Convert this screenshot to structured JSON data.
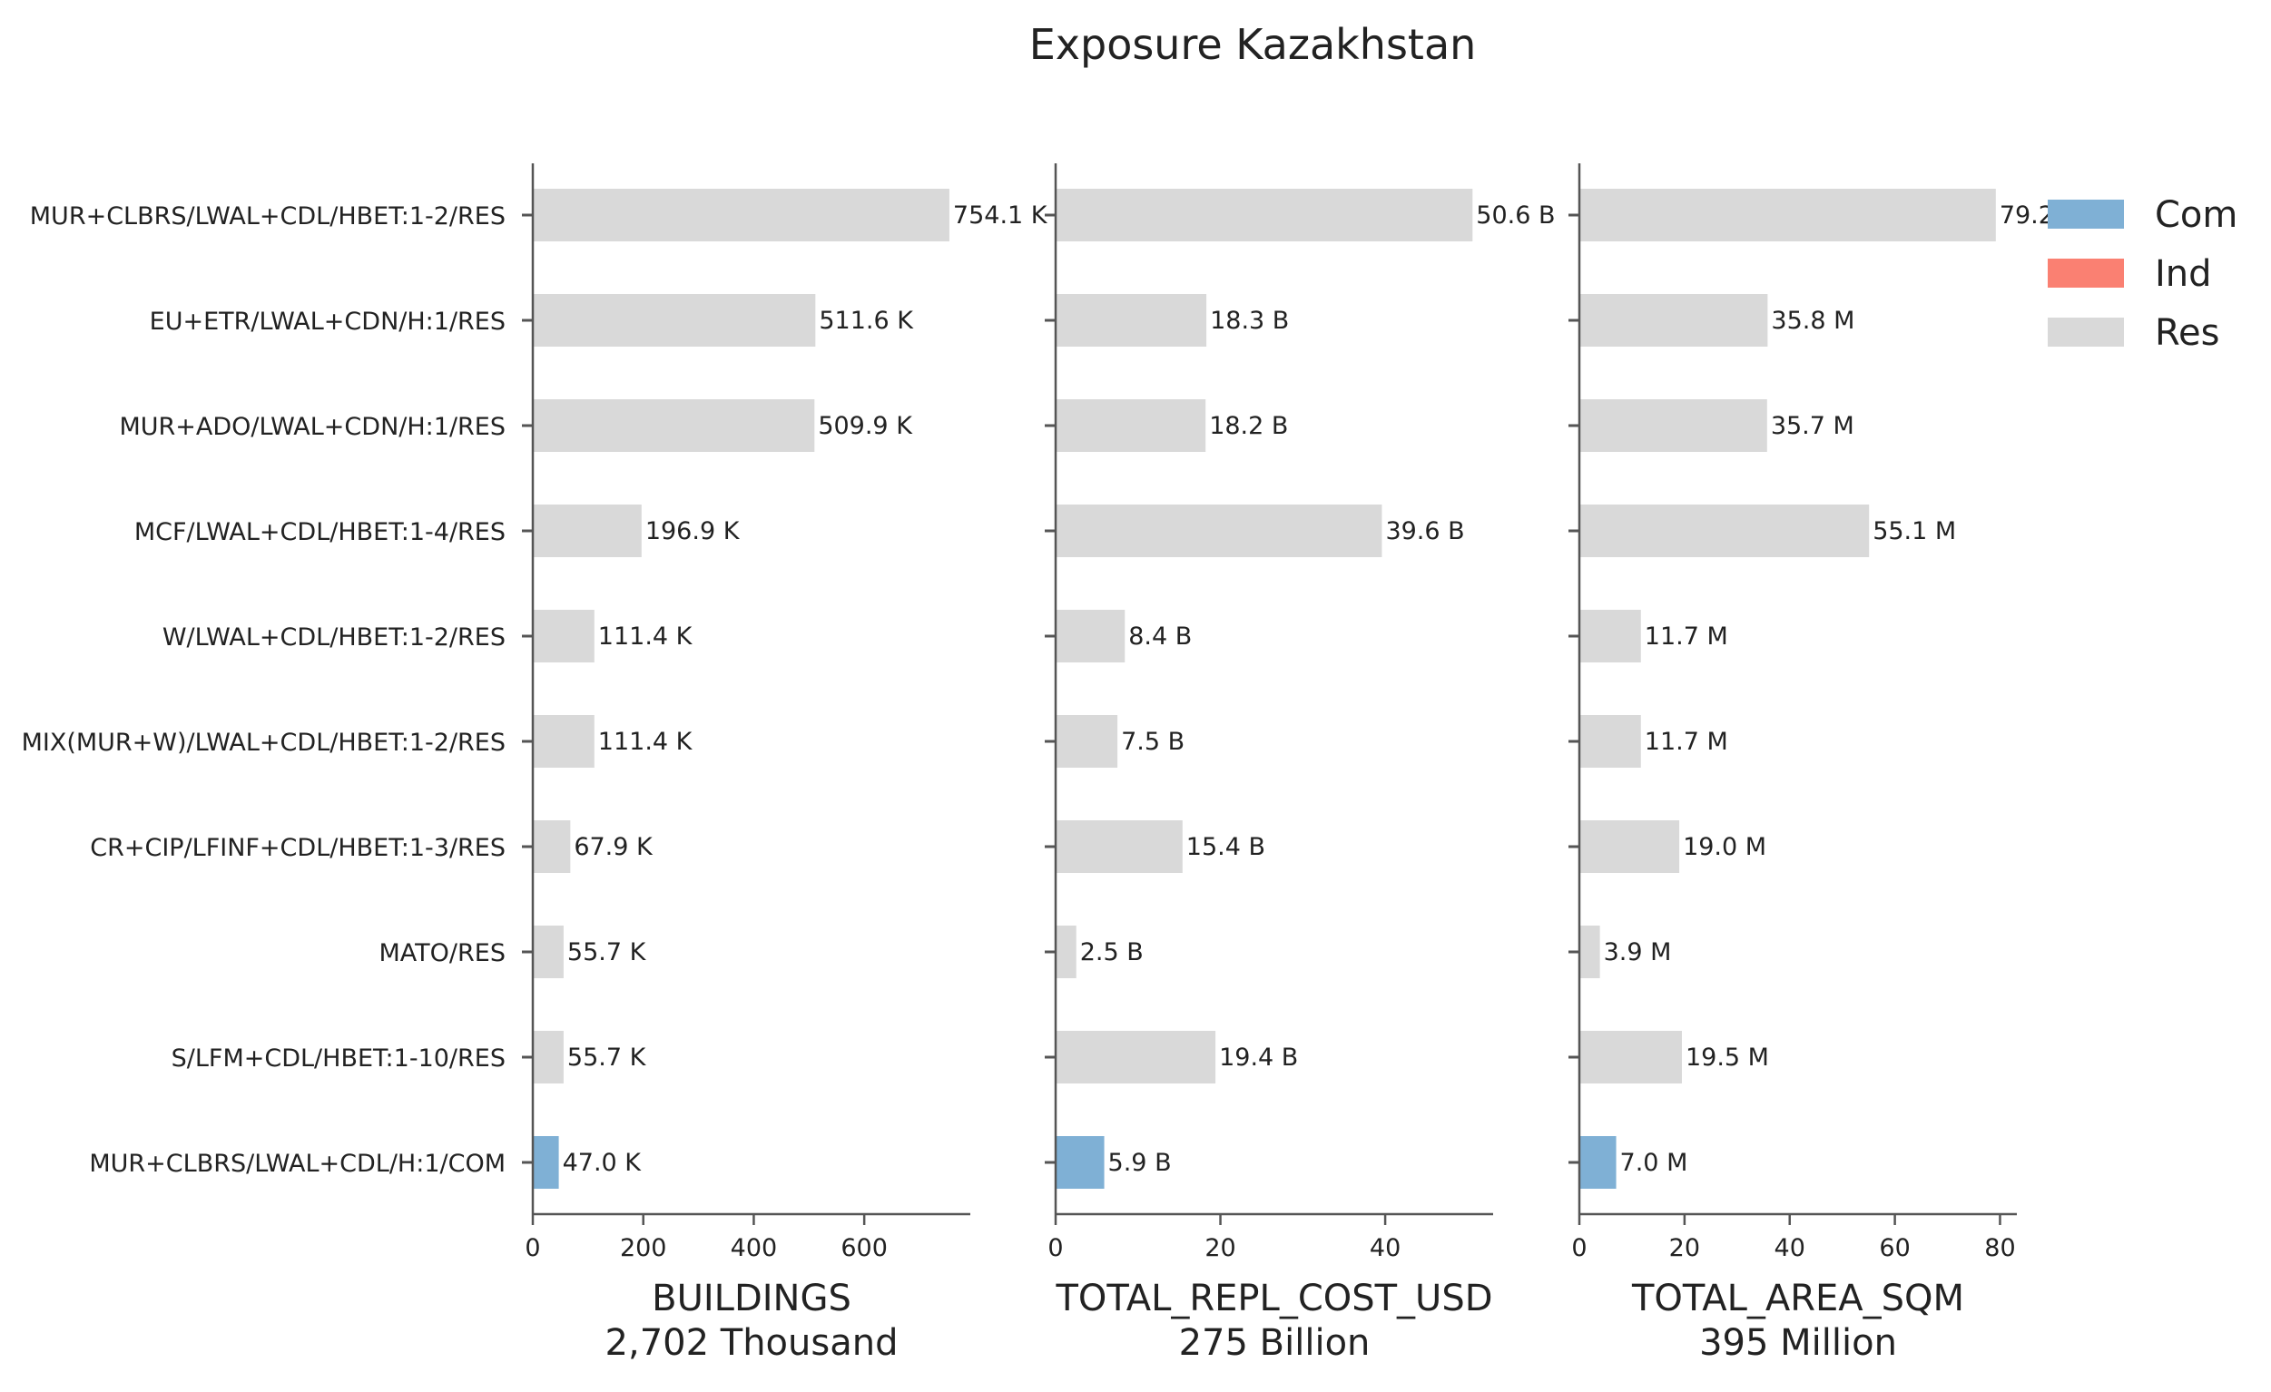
{
  "chart_data": {
    "type": "bar",
    "orientation": "horizontal",
    "title": "Exposure Kazakhstan",
    "categories": [
      "MUR+CLBRS/LWAL+CDL/HBET:1-2/RES",
      "EU+ETR/LWAL+CDN/H:1/RES",
      "MUR+ADO/LWAL+CDN/H:1/RES",
      "MCF/LWAL+CDL/HBET:1-4/RES",
      "W/LWAL+CDL/HBET:1-2/RES",
      "MIX(MUR+W)/LWAL+CDL/HBET:1-2/RES",
      "CR+CIP/LFINF+CDL/HBET:1-3/RES",
      "MATO/RES",
      "S/LFM+CDL/HBET:1-10/RES",
      "MUR+CLBRS/LWAL+CDL/H:1/COM"
    ],
    "occupancy": [
      "Res",
      "Res",
      "Res",
      "Res",
      "Res",
      "Res",
      "Res",
      "Res",
      "Res",
      "Com"
    ],
    "legend": {
      "placement": "top-right",
      "entries": [
        {
          "label": "Com",
          "color": "#7fb0d5"
        },
        {
          "label": "Ind",
          "color": "#fa8072"
        },
        {
          "label": "Res",
          "color": "#d9d9d9"
        }
      ]
    },
    "panels": [
      {
        "xlabel": "BUILDINGS",
        "total_label": "2,702 Thousand",
        "values": [
          754.1,
          511.6,
          509.9,
          196.9,
          111.4,
          111.4,
          67.9,
          55.7,
          55.7,
          47.0
        ],
        "value_labels": [
          "754.1 K",
          "511.6 K",
          "509.9 K",
          "196.9 K",
          "111.4 K",
          "111.4 K",
          "67.9 K",
          "55.7 K",
          "55.7 K",
          "47.0 K"
        ],
        "xlim": [
          0,
          792
        ],
        "xticks": [
          0,
          200,
          400,
          600
        ],
        "xtick_labels": [
          "0",
          "200",
          "400",
          "600"
        ]
      },
      {
        "xlabel": "TOTAL_REPL_COST_USD",
        "total_label": "275 Billion",
        "values": [
          50.6,
          18.3,
          18.2,
          39.6,
          8.4,
          7.5,
          15.4,
          2.5,
          19.4,
          5.9
        ],
        "value_labels": [
          "50.6 B",
          "18.3 B",
          "18.2 B",
          "39.6 B",
          "8.4 B",
          "7.5 B",
          "15.4 B",
          "2.5 B",
          "19.4 B",
          "5.9 B"
        ],
        "xlim": [
          0,
          53.1
        ],
        "xticks": [
          0,
          20,
          40
        ],
        "xtick_labels": [
          "0",
          "20",
          "40"
        ]
      },
      {
        "xlabel": "TOTAL_AREA_SQM",
        "total_label": "395 Million",
        "values": [
          79.2,
          35.8,
          35.7,
          55.1,
          11.7,
          11.7,
          19.0,
          3.9,
          19.5,
          7.0
        ],
        "value_labels": [
          "79.2",
          "35.8 M",
          "35.7 M",
          "55.1 M",
          "11.7 M",
          "11.7 M",
          "19.0 M",
          "3.9 M",
          "19.5 M",
          "7.0 M"
        ],
        "xlim": [
          0,
          83.2
        ],
        "xticks": [
          0,
          20,
          40,
          60,
          80
        ],
        "xtick_labels": [
          "0",
          "20",
          "40",
          "60",
          "80"
        ]
      }
    ]
  }
}
